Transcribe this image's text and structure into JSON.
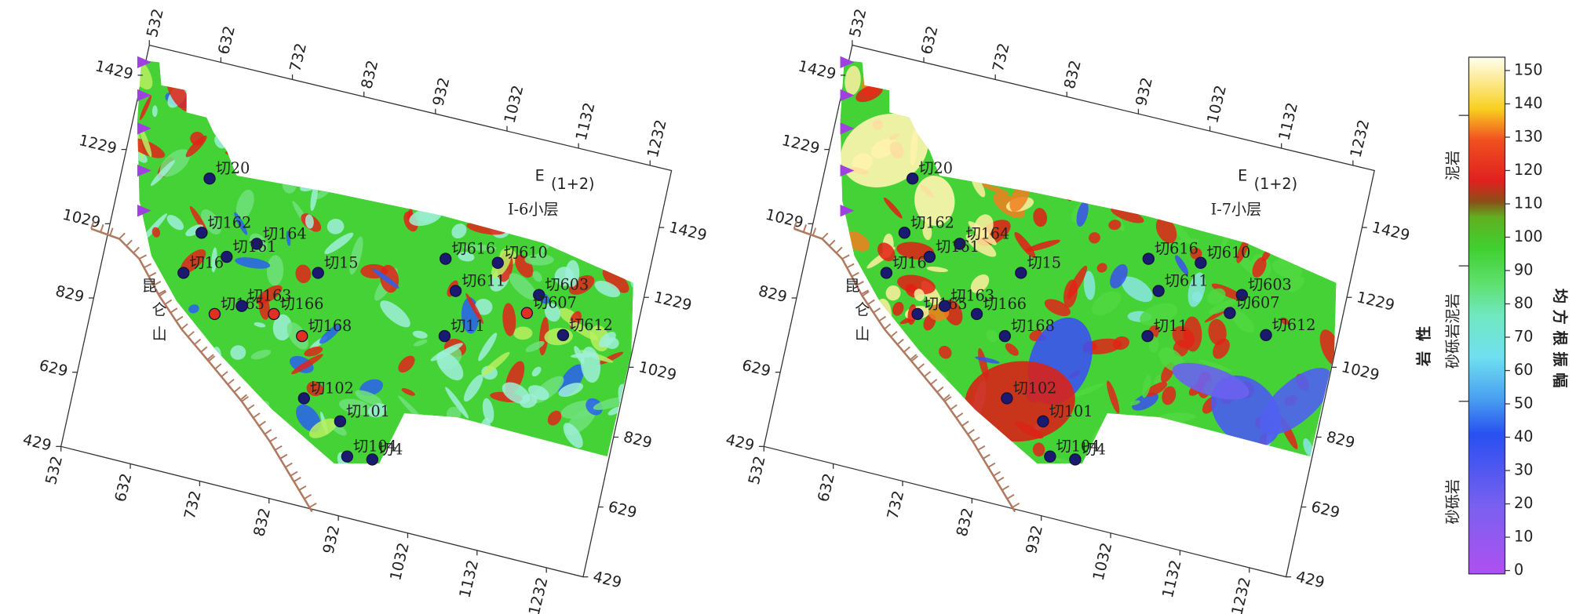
{
  "panels": [
    {
      "title": "E",
      "title_sub": "(1+2)",
      "layer": "Ⅰ-6小层",
      "range_label": "昆仑山",
      "top_ticks": [
        532,
        632,
        732,
        832,
        932,
        1032,
        1132,
        1232
      ],
      "top_lim": [
        532,
        1262
      ],
      "bottom_ticks": [
        532,
        632,
        732,
        832,
        932,
        1032,
        1132,
        1232
      ],
      "bottom_lim": [
        532,
        1285
      ],
      "left_ticks": [
        1429,
        1229,
        1029,
        829,
        629,
        429
      ],
      "left_lim": [
        429,
        1510
      ],
      "right_ticks": [
        1429,
        1229,
        1029,
        829,
        629,
        429
      ],
      "right_lim": [
        429,
        1592
      ],
      "wells": [
        "切20",
        "切162",
        "切164",
        "切161",
        "切16",
        "切165",
        "切163",
        "切15",
        "切166",
        "切168",
        "切616",
        "切610",
        "切611",
        "切603",
        "切607",
        "切612",
        "切11",
        "切102",
        "切101",
        "切104",
        "切4"
      ]
    },
    {
      "title": "E",
      "title_sub": "(1+2)",
      "layer": "Ⅰ-7小层",
      "range_label": "昆仑山",
      "top_ticks": [
        532,
        632,
        732,
        832,
        932,
        1032,
        1132,
        1232
      ],
      "top_lim": [
        532,
        1262
      ],
      "bottom_ticks": [
        532,
        632,
        732,
        832,
        932,
        1032,
        1132,
        1232
      ],
      "bottom_lim": [
        532,
        1285
      ],
      "left_ticks": [
        1429,
        1229,
        1029,
        829,
        629,
        429
      ],
      "left_lim": [
        429,
        1510
      ],
      "right_ticks": [
        1429,
        1229,
        1029,
        829,
        629,
        429
      ],
      "right_lim": [
        429,
        1592
      ],
      "wells": [
        "切20",
        "切162",
        "切164",
        "切161",
        "切16",
        "切165",
        "切163",
        "切15",
        "切166",
        "切168",
        "切616",
        "切610",
        "切611",
        "切603",
        "切607",
        "切612",
        "切11",
        "切102",
        "切101",
        "切104",
        "切4"
      ]
    }
  ],
  "colorbar": {
    "title": "均方根振幅",
    "lithology_title": "岩性",
    "ticks": [
      0,
      10,
      20,
      30,
      40,
      50,
      60,
      70,
      80,
      90,
      100,
      110,
      120,
      130,
      140,
      150
    ],
    "lim": [
      -1,
      154
    ],
    "lithology": [
      "泥岩",
      "砂砾岩泥岩",
      "砂砾岩"
    ]
  }
}
